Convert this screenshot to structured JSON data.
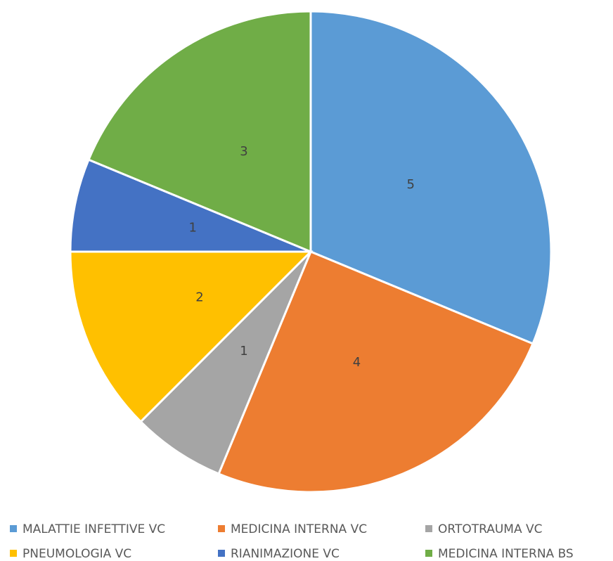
{
  "chart_data": {
    "type": "pie",
    "categories": [
      "MALATTIE INFETTIVE VC",
      "MEDICINA INTERNA VC",
      "ORTOTRAUMA VC",
      "PNEUMOLOGIA VC",
      "RIANIMAZIONE VC",
      "MEDICINA INTERNA BS"
    ],
    "values": [
      5,
      4,
      1,
      2,
      1,
      3
    ],
    "colors": [
      "#5b9bd5",
      "#ed7d31",
      "#a5a5a5",
      "#ffc000",
      "#4472c4",
      "#70ad47"
    ],
    "legend": "bottom"
  }
}
